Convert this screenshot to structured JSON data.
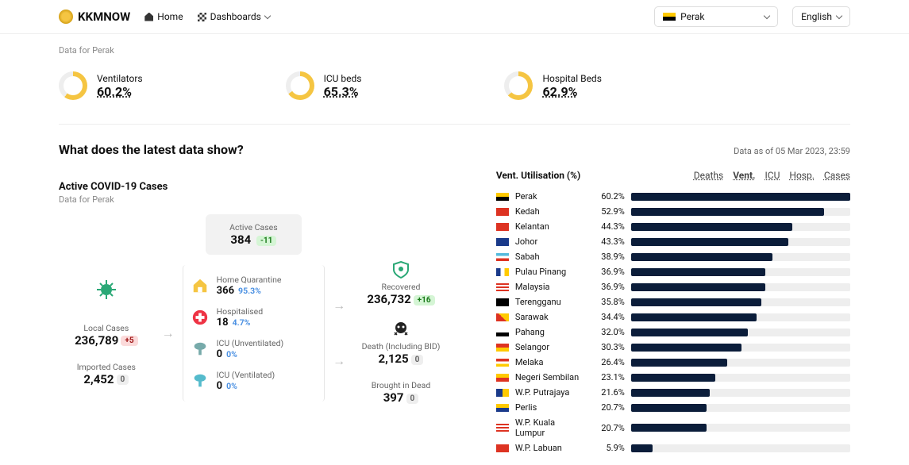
{
  "topbar": {
    "brand": "KKMNOW",
    "home": "Home",
    "dashboards": "Dashboards",
    "region": "Perak",
    "lang": "English"
  },
  "sub_region": "Data for Perak",
  "donuts": {
    "accent": "#f5c542",
    "track": "#eeeeee",
    "items": [
      {
        "label": "Ventilators",
        "value": "60.2%",
        "pct": 60.2
      },
      {
        "label": "ICU beds",
        "value": "65.3%",
        "pct": 65.3
      },
      {
        "label": "Hospital Beds",
        "value": "62.9%",
        "pct": 62.9
      }
    ]
  },
  "question": "What does the latest data show?",
  "asof": "Data as of 05 Mar 2023, 23:59",
  "snapshot": {
    "title": "Active COVID-19 Cases",
    "sub": "Data for Perak",
    "active": {
      "label": "Active Cases",
      "value": "384",
      "delta": "-11",
      "delta_class": "green"
    },
    "local": {
      "label": "Local Cases",
      "value": "236,789",
      "delta": "+5",
      "delta_class": "red"
    },
    "imported": {
      "label": "Imported Cases",
      "value": "2,452",
      "delta": "0",
      "delta_class": "gray"
    },
    "home": {
      "label": "Home Quarantine",
      "value": "366",
      "pc": "95.3%"
    },
    "hosp": {
      "label": "Hospitalised",
      "value": "18",
      "pc": "4.7%"
    },
    "icu_u": {
      "label": "ICU (Unventilated)",
      "value": "0",
      "pc": "0%"
    },
    "icu_v": {
      "label": "ICU (Ventilated)",
      "value": "0",
      "pc": "0%"
    },
    "recov": {
      "label": "Recovered",
      "value": "236,732",
      "delta": "+16",
      "delta_class": "green"
    },
    "death": {
      "label": "Death (Including BID)",
      "value": "2,125",
      "delta": "0",
      "delta_class": "gray"
    },
    "bid": {
      "label": "Brought in Dead",
      "value": "397",
      "delta": "0",
      "delta_class": "gray"
    }
  },
  "ranking": {
    "title": "Vent. Utilisation (%)",
    "tabs": {
      "deaths": "Deaths",
      "vent": "Vent.",
      "icu": "ICU",
      "hosp": "Hosp.",
      "cases": "Cases"
    },
    "bar_color": "#0b1d3a",
    "track_color": "#eeeeee",
    "states": [
      {
        "flag": "f-perak",
        "name": "Perak",
        "pct": 60.2
      },
      {
        "flag": "f-kedah",
        "name": "Kedah",
        "pct": 52.9
      },
      {
        "flag": "f-kelantan",
        "name": "Kelantan",
        "pct": 44.3
      },
      {
        "flag": "f-johor",
        "name": "Johor",
        "pct": 43.3
      },
      {
        "flag": "f-sabah",
        "name": "Sabah",
        "pct": 38.9
      },
      {
        "flag": "f-pinang",
        "name": "Pulau Pinang",
        "pct": 36.9
      },
      {
        "flag": "f-msia",
        "name": "Malaysia",
        "pct": 36.9
      },
      {
        "flag": "f-tgnu",
        "name": "Terengganu",
        "pct": 35.8
      },
      {
        "flag": "f-swk",
        "name": "Sarawak",
        "pct": 34.4
      },
      {
        "flag": "f-phg",
        "name": "Pahang",
        "pct": 32.0
      },
      {
        "flag": "f-sgr",
        "name": "Selangor",
        "pct": 30.3
      },
      {
        "flag": "f-mlk",
        "name": "Melaka",
        "pct": 26.4
      },
      {
        "flag": "f-ns",
        "name": "Negeri Sembilan",
        "pct": 23.1
      },
      {
        "flag": "f-ptj",
        "name": "W.P. Putrajaya",
        "pct": 21.6
      },
      {
        "flag": "f-pls",
        "name": "Perlis",
        "pct": 20.7
      },
      {
        "flag": "f-kl",
        "name": "W.P. Kuala Lumpur",
        "pct": 20.7
      },
      {
        "flag": "f-lbn",
        "name": "W.P. Labuan",
        "pct": 5.9
      }
    ]
  }
}
